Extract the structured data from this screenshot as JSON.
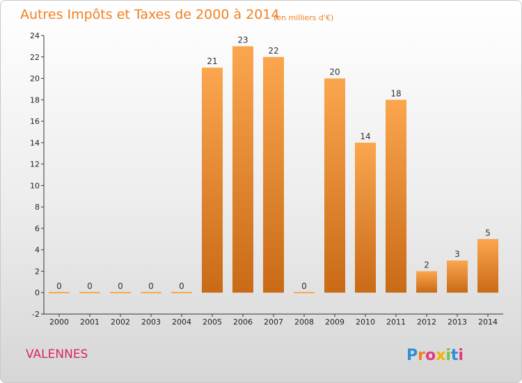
{
  "chart_data": {
    "type": "bar",
    "title": "Autres Impôts et Taxes de 2000 à 2014",
    "subtitle": "(en milliers d'€)",
    "categories": [
      "2000",
      "2001",
      "2002",
      "2003",
      "2004",
      "2005",
      "2006",
      "2007",
      "2008",
      "2009",
      "2010",
      "2011",
      "2012",
      "2013",
      "2014"
    ],
    "values": [
      0,
      0,
      0,
      0,
      0,
      21,
      23,
      22,
      0,
      20,
      14,
      18,
      2,
      3,
      5
    ],
    "xlabel": "",
    "ylabel": "",
    "ylim": [
      -2,
      24
    ],
    "yticks": [
      -2,
      0,
      2,
      4,
      6,
      8,
      10,
      12,
      14,
      16,
      18,
      20,
      22,
      24
    ],
    "grid": false,
    "legend": "none",
    "bar_color_top": "#fba64e",
    "bar_color_bottom": "#c96a16"
  },
  "place_name": "VALENNES",
  "brand": {
    "text": "Proxiti",
    "colors": [
      "#2f8fd8",
      "#f08022",
      "#e23a7a",
      "#f3b400",
      "#7cc242",
      "#2f8fd8",
      "#e23a7a"
    ]
  }
}
